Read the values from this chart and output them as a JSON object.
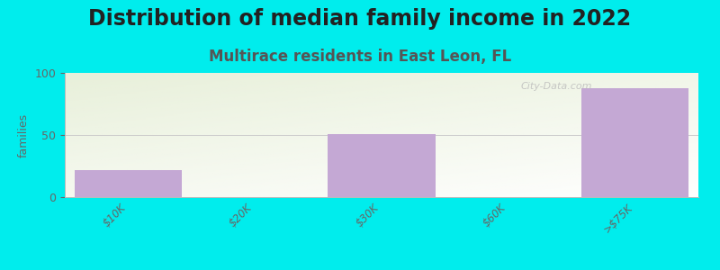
{
  "title": "Distribution of median family income in 2022",
  "subtitle": "Multirace residents in East Leon, FL",
  "ylabel": "families",
  "categories": [
    "$10K",
    "$20K",
    "$30K",
    "$60K",
    ">$75K"
  ],
  "values": [
    22,
    0,
    51,
    0,
    88
  ],
  "bar_color": "#c4a8d4",
  "background_color": "#00eded",
  "ylim": [
    0,
    100
  ],
  "yticks": [
    0,
    50,
    100
  ],
  "title_fontsize": 17,
  "subtitle_fontsize": 12,
  "subtitle_color": "#555555",
  "title_color": "#222222",
  "watermark": "City-Data.com",
  "plot_bg_colors": [
    "#e8f0da",
    "#f8faf2",
    "#ffffff"
  ],
  "bar_positions": [
    0,
    1,
    2,
    3,
    4
  ],
  "x_spacing": [
    0,
    1,
    2,
    4,
    8
  ]
}
